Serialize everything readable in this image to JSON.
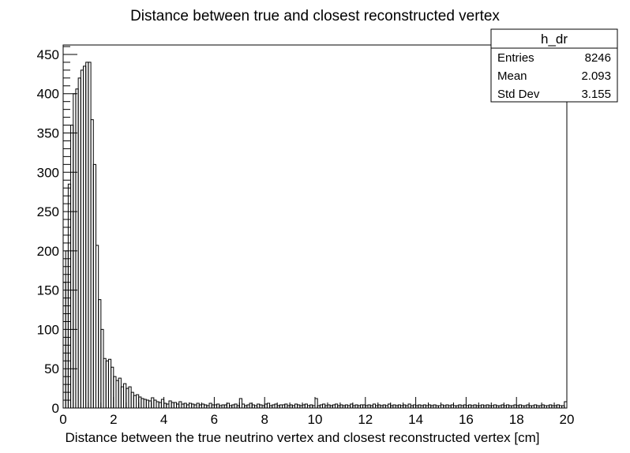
{
  "chart_data": {
    "type": "histogram",
    "title": "Distance between true and closest reconstructed vertex",
    "xlabel": "Distance between the true neutrino vertex and closest reconstructed vertex [cm]",
    "ylabel": "",
    "xlim": [
      0,
      20
    ],
    "ylim": [
      0,
      462
    ],
    "grid": false,
    "bin_width": 0.1,
    "x_ticks": [
      0,
      2,
      4,
      6,
      8,
      10,
      12,
      14,
      16,
      18,
      20
    ],
    "y_ticks": [
      0,
      50,
      100,
      150,
      200,
      250,
      300,
      350,
      400,
      450
    ],
    "values": [
      160,
      200,
      285,
      360,
      400,
      406,
      420,
      430,
      435,
      440,
      440,
      367,
      310,
      207,
      138,
      100,
      63,
      60,
      62,
      52,
      40,
      35,
      38,
      27,
      31,
      25,
      27,
      20,
      16,
      17,
      14,
      12,
      11,
      10,
      9,
      13,
      10,
      8,
      7,
      11,
      6,
      5,
      9,
      7,
      7,
      5,
      8,
      5,
      6,
      4,
      6,
      5,
      4,
      6,
      4,
      5,
      4,
      3,
      6,
      4,
      4,
      5,
      3,
      4,
      4,
      6,
      3,
      4,
      5,
      3,
      12,
      5,
      3,
      4,
      6,
      4,
      3,
      5,
      4,
      3,
      5,
      6,
      3,
      4,
      5,
      3,
      4,
      4,
      5,
      3,
      4,
      3,
      5,
      4,
      3,
      4,
      5,
      3,
      4,
      3,
      12,
      3,
      4,
      5,
      3,
      4,
      3,
      4,
      5,
      3,
      4,
      3,
      4,
      3,
      5,
      3,
      4,
      3,
      4,
      4,
      3,
      4,
      3,
      5,
      3,
      4,
      3,
      4,
      3,
      5,
      3,
      4,
      3,
      4,
      3,
      4,
      3,
      5,
      3,
      4,
      3,
      4,
      3,
      4,
      3,
      4,
      3,
      4,
      3,
      3,
      4,
      3,
      4,
      3,
      4,
      3,
      3,
      4,
      3,
      4,
      3,
      4,
      3,
      4,
      3,
      3,
      4,
      3,
      4,
      3,
      3,
      4,
      3,
      3,
      4,
      3,
      4,
      3,
      3,
      4,
      3,
      4,
      3,
      3,
      4,
      3,
      3,
      4,
      3,
      3,
      4,
      3,
      3,
      4,
      3,
      3,
      4,
      3,
      3,
      8
    ]
  },
  "stats_box": {
    "name": "h_dr",
    "rows": [
      {
        "label": "Entries",
        "value": "8246"
      },
      {
        "label": "Mean",
        "value": "2.093"
      },
      {
        "label": "Std Dev",
        "value": "3.155"
      }
    ]
  }
}
